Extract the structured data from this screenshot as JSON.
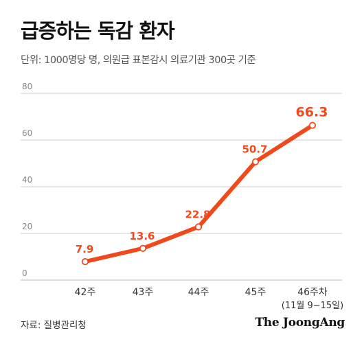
{
  "title": "급증하는 독감 환자",
  "subtitle": "단위: 1000명당 명, 의원급 표본감시 의료기관 300곳 기준",
  "source": "자료: 질병관리청",
  "brand": "The JoongAng",
  "chart_data": {
    "type": "line",
    "categories": [
      "42주",
      "43주",
      "44주",
      "45주",
      "46주차"
    ],
    "category_sublabels": [
      "",
      "",
      "",
      "",
      "(11월 9~15일)"
    ],
    "values": [
      7.9,
      13.6,
      22.8,
      50.7,
      66.3
    ],
    "value_labels": [
      "7.9",
      "13.6",
      "22.8",
      "50.7",
      "66.3"
    ],
    "ylim": [
      0,
      80
    ],
    "yticks": [
      0,
      20,
      40,
      60,
      80
    ],
    "grid": true,
    "line_color": "#f04a1c",
    "label_color": "#f04a1c",
    "grid_color": "#cccccc"
  }
}
